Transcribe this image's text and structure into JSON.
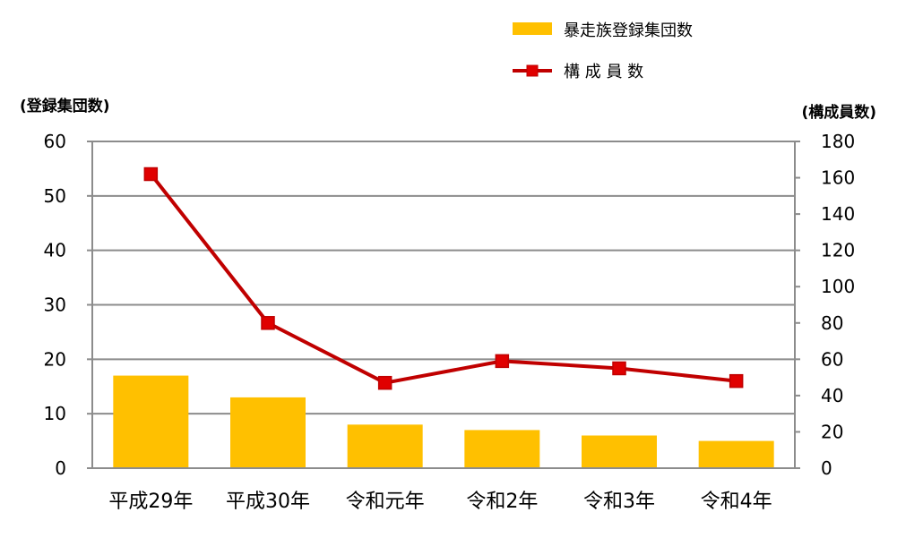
{
  "chart_data": {
    "type": "bar",
    "categories": [
      "平成29年",
      "平成30年",
      "令和元年",
      "令和2年",
      "令和3年",
      "令和4年"
    ],
    "series": [
      {
        "name": "暴走族登録集団数",
        "type": "bar",
        "axis": "left",
        "color": "#FFC000",
        "values": [
          17,
          13,
          8,
          7,
          6,
          5
        ]
      },
      {
        "name": "構 成 員 数",
        "type": "line",
        "axis": "right",
        "color": "#C00000",
        "marker_color": "#E00000",
        "values": [
          162,
          80,
          47,
          59,
          55,
          48
        ]
      }
    ],
    "y_left": {
      "label": "(登録集団数)",
      "range": [
        0,
        60
      ],
      "ticks": [
        0,
        10,
        20,
        30,
        40,
        50,
        60
      ]
    },
    "y_right": {
      "label": "(構成員数)",
      "range": [
        0,
        180
      ],
      "ticks": [
        0,
        20,
        40,
        60,
        80,
        100,
        120,
        140,
        160,
        180
      ]
    },
    "grid": true,
    "legend_position": "top-right"
  }
}
